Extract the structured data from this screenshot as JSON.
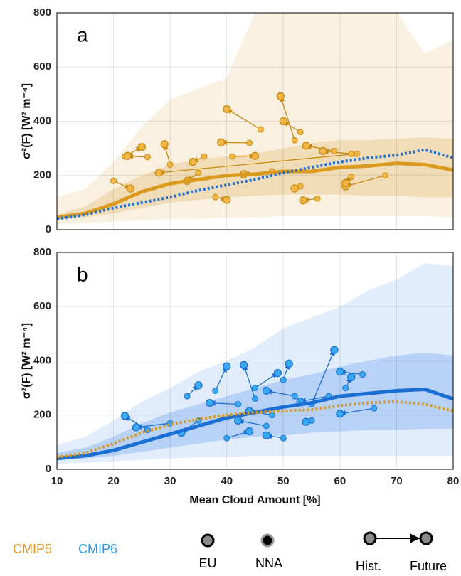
{
  "chart_data": [
    {
      "type": "line",
      "label": "a",
      "ylabel": "σ²(F) [W² m⁻⁴]",
      "xlim": [
        10,
        80
      ],
      "ylim": [
        0,
        800
      ],
      "xticks": [
        10,
        20,
        30,
        40,
        50,
        60,
        70,
        80
      ],
      "yticks": [
        0,
        200,
        400,
        600,
        800
      ],
      "grid": true,
      "x": [
        10,
        15,
        20,
        25,
        30,
        35,
        40,
        45,
        50,
        55,
        60,
        65,
        70,
        75,
        80
      ],
      "bands": [
        {
          "color": "rgba(238,200,140,0.28)",
          "lower": [
            20,
            25,
            30,
            35,
            40,
            40,
            45,
            45,
            50,
            50,
            50,
            50,
            50,
            50,
            45
          ],
          "upper": [
            120,
            150,
            250,
            380,
            480,
            520,
            560,
            800,
            800,
            800,
            800,
            800,
            800,
            650,
            700
          ]
        },
        {
          "color": "rgba(222,180,100,0.32)",
          "lower": [
            35,
            45,
            60,
            80,
            100,
            110,
            120,
            125,
            130,
            130,
            130,
            125,
            125,
            120,
            120
          ],
          "upper": [
            55,
            85,
            150,
            200,
            240,
            260,
            270,
            280,
            300,
            320,
            330,
            330,
            335,
            340,
            335
          ]
        }
      ],
      "series": [
        {
          "color": "#d99a1e",
          "dash": "none",
          "width": 5,
          "values": [
            45,
            60,
            95,
            140,
            170,
            185,
            200,
            205,
            215,
            215,
            230,
            235,
            245,
            240,
            220
          ]
        },
        {
          "color": "#1f6fd6",
          "dash": "3 3",
          "width": 4,
          "values": [
            40,
            55,
            80,
            100,
            120,
            145,
            165,
            185,
            210,
            230,
            250,
            265,
            275,
            295,
            265
          ]
        }
      ],
      "arrows": {
        "color": "#c98a12",
        "fill": "#f0b646",
        "items": [
          {
            "hist": [
              46,
              370
            ],
            "future": [
              40,
              445
            ]
          },
          {
            "hist": [
              52,
              330
            ],
            "future": [
              49.5,
              492
            ]
          },
          {
            "hist": [
              53,
              360
            ],
            "future": [
              50,
              400
            ]
          },
          {
            "hist": [
              62,
              280
            ],
            "future": [
              57,
              290
            ]
          },
          {
            "hist": [
              68,
              200
            ],
            "future": [
              61,
              160
            ]
          },
          {
            "hist": [
              62,
              195
            ],
            "future": [
              61,
              172
            ]
          },
          {
            "hist": [
              56,
              115
            ],
            "future": [
              53.5,
              108
            ]
          },
          {
            "hist": [
              53,
              160
            ],
            "future": [
              52,
              152
            ]
          },
          {
            "hist": [
              41,
              270
            ],
            "future": [
              45,
              272
            ]
          },
          {
            "hist": [
              38,
              120
            ],
            "future": [
              40,
              110
            ]
          },
          {
            "hist": [
              22,
              270
            ],
            "future": [
              25,
              305
            ]
          },
          {
            "hist": [
              26,
              268
            ],
            "future": [
              22.5,
              272
            ]
          },
          {
            "hist": [
              30,
              240
            ],
            "future": [
              29,
              315
            ]
          },
          {
            "hist": [
              20,
              180
            ],
            "future": [
              23,
              152
            ]
          },
          {
            "hist": [
              44,
              320
            ],
            "future": [
              39,
              322
            ]
          },
          {
            "hist": [
              63,
              280
            ],
            "future": [
              28,
              210
            ]
          },
          {
            "hist": [
              35,
              210
            ],
            "future": [
              33,
              180
            ]
          },
          {
            "hist": [
              36,
              270
            ],
            "future": [
              34,
              250
            ]
          },
          {
            "hist": [
              48,
              215
            ],
            "future": [
              43,
              205
            ]
          },
          {
            "hist": [
              59,
              290
            ],
            "future": [
              54,
              310
            ]
          }
        ]
      }
    },
    {
      "type": "line",
      "label": "b",
      "ylabel": "σ²(F) [W² m⁻⁴]",
      "xlabel": "Mean Cloud Amount [%]",
      "xlim": [
        10,
        80
      ],
      "ylim": [
        0,
        800
      ],
      "xticks": [
        10,
        20,
        30,
        40,
        50,
        60,
        70,
        80
      ],
      "yticks": [
        0,
        200,
        400,
        600,
        800
      ],
      "grid": true,
      "x": [
        10,
        15,
        20,
        25,
        30,
        35,
        40,
        45,
        50,
        55,
        60,
        65,
        70,
        75,
        80
      ],
      "bands": [
        {
          "color": "rgba(120,170,240,0.22)",
          "lower": [
            20,
            25,
            30,
            35,
            40,
            45,
            45,
            50,
            50,
            50,
            50,
            50,
            50,
            50,
            50
          ],
          "upper": [
            90,
            120,
            180,
            250,
            300,
            360,
            400,
            450,
            520,
            560,
            600,
            660,
            700,
            760,
            750
          ]
        },
        {
          "color": "rgba(80,140,230,0.28)",
          "lower": [
            35,
            40,
            50,
            65,
            80,
            95,
            110,
            120,
            125,
            135,
            140,
            145,
            145,
            150,
            150
          ],
          "upper": [
            60,
            80,
            120,
            170,
            210,
            240,
            270,
            300,
            330,
            350,
            380,
            400,
            420,
            430,
            420
          ]
        }
      ],
      "series": [
        {
          "color": "#1a6fd6",
          "dash": "none",
          "width": 5,
          "values": [
            40,
            50,
            70,
            100,
            130,
            160,
            190,
            210,
            230,
            245,
            270,
            280,
            290,
            295,
            260
          ]
        },
        {
          "color": "#d99a1e",
          "dash": "3 3",
          "width": 4,
          "values": [
            45,
            60,
            95,
            135,
            165,
            185,
            200,
            210,
            215,
            220,
            235,
            245,
            250,
            240,
            215
          ]
        }
      ],
      "arrows": {
        "color": "#1a6fd6",
        "fill": "#3aaaf0",
        "items": [
          {
            "hist": [
              26,
              145
            ],
            "future": [
              22,
              197
            ]
          },
          {
            "hist": [
              40,
              115
            ],
            "future": [
              44,
              140
            ]
          },
          {
            "hist": [
              50,
              115
            ],
            "future": [
              47,
              125
            ]
          },
          {
            "hist": [
              47,
              160
            ],
            "future": [
              42,
              180
            ]
          },
          {
            "hist": [
              45,
              260
            ],
            "future": [
              43,
              385
            ]
          },
          {
            "hist": [
              50,
              330
            ],
            "future": [
              51,
              390
            ]
          },
          {
            "hist": [
              55,
              240
            ],
            "future": [
              59,
              440
            ]
          },
          {
            "hist": [
              61,
              300
            ],
            "future": [
              62,
              340
            ]
          },
          {
            "hist": [
              64,
              350
            ],
            "future": [
              60,
              360
            ]
          },
          {
            "hist": [
              66,
              225
            ],
            "future": [
              60,
              205
            ]
          },
          {
            "hist": [
              55,
              180
            ],
            "future": [
              54,
              175
            ]
          },
          {
            "hist": [
              35,
              180
            ],
            "future": [
              32,
              135
            ]
          },
          {
            "hist": [
              33,
              270
            ],
            "future": [
              35,
              310
            ]
          },
          {
            "hist": [
              38,
              290
            ],
            "future": [
              40,
              380
            ]
          },
          {
            "hist": [
              45,
              300
            ],
            "future": [
              49,
              355
            ]
          },
          {
            "hist": [
              52,
              270
            ],
            "future": [
              47,
              290
            ]
          },
          {
            "hist": [
              42,
              240
            ],
            "future": [
              37,
              245
            ]
          },
          {
            "hist": [
              58,
              270
            ],
            "future": [
              53,
              250
            ]
          },
          {
            "hist": [
              30,
              170
            ],
            "future": [
              24,
              155
            ]
          },
          {
            "hist": [
              48,
              200
            ],
            "future": [
              44,
              215
            ]
          }
        ]
      }
    }
  ],
  "legend": {
    "cmip5": "CMIP5",
    "cmip5_color": "#e8961e",
    "cmip6": "CMIP6",
    "cmip6_color": "#1e9be8",
    "eu": "EU",
    "nna": "NNA",
    "hist": "Hist.",
    "future": "Future"
  }
}
